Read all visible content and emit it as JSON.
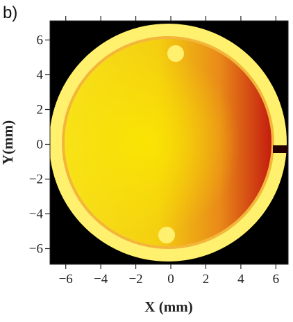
{
  "panel_label": "b)",
  "chart_data": {
    "type": "heatmap",
    "xlabel": "X (mm)",
    "ylabel": "Y(mm)",
    "xlim": [
      -6.9,
      6.7
    ],
    "ylim": [
      -6.9,
      7.1
    ],
    "xticks": [
      {
        "value": -6,
        "label": "−6"
      },
      {
        "value": -4,
        "label": "−4"
      },
      {
        "value": -2,
        "label": "−2"
      },
      0,
      2,
      4,
      6
    ],
    "yticks": [
      {
        "value": -6,
        "label": "−6"
      },
      {
        "value": -4,
        "label": "−4"
      },
      {
        "value": -2,
        "label": "−2"
      },
      0,
      2,
      4,
      6
    ]
  }
}
